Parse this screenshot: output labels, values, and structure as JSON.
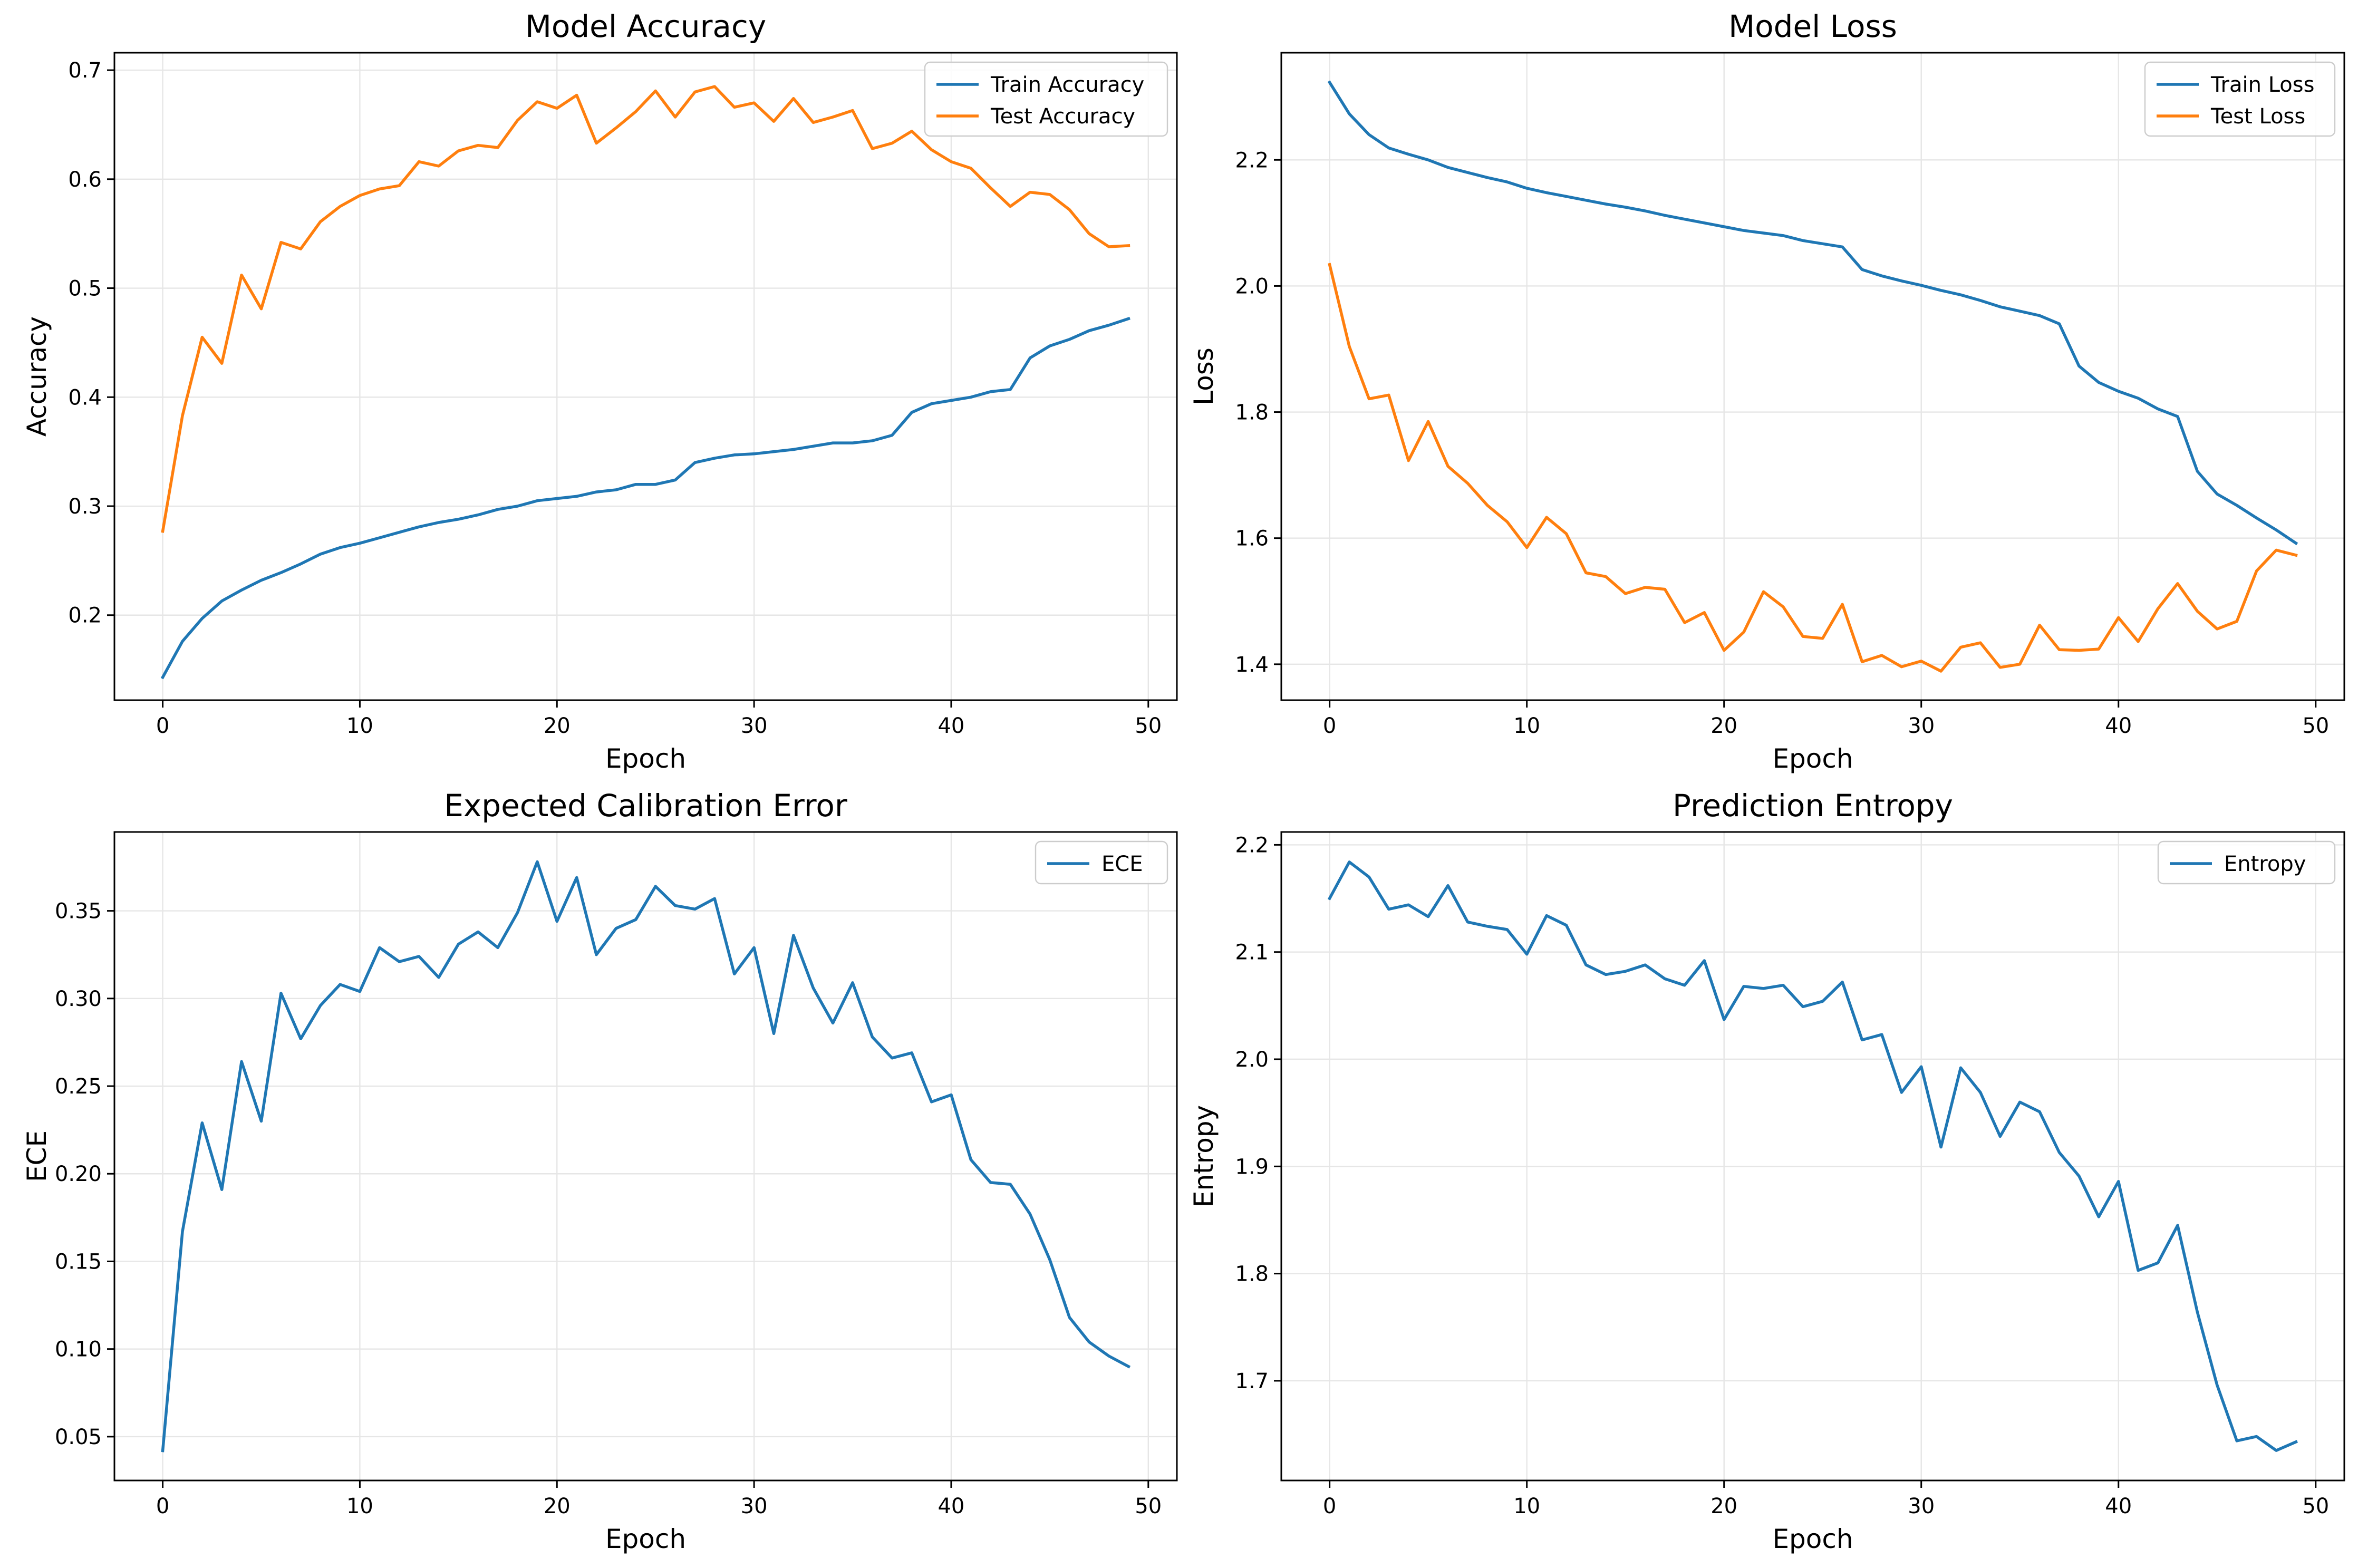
{
  "chart_data": [
    {
      "type": "line",
      "title": "Model Accuracy",
      "xlabel": "Epoch",
      "ylabel": "Accuracy",
      "xlim": [
        -2.45,
        51.45
      ],
      "ylim": [
        0.122,
        0.716
      ],
      "xticks": [
        0,
        10,
        20,
        30,
        40,
        50
      ],
      "yticks": [
        0.2,
        0.3,
        0.4,
        0.5,
        0.6,
        0.7
      ],
      "ytick_labels": [
        "0.2",
        "0.3",
        "0.4",
        "0.5",
        "0.6",
        "0.7"
      ],
      "grid": true,
      "legend_position": "top-right",
      "x": [
        0,
        1,
        2,
        3,
        4,
        5,
        6,
        7,
        8,
        9,
        10,
        11,
        12,
        13,
        14,
        15,
        16,
        17,
        18,
        19,
        20,
        21,
        22,
        23,
        24,
        25,
        26,
        27,
        28,
        29,
        30,
        31,
        32,
        33,
        34,
        35,
        36,
        37,
        38,
        39,
        40,
        41,
        42,
        43,
        44,
        45,
        46,
        47,
        48,
        49
      ],
      "series": [
        {
          "name": "Train Accuracy",
          "color": "#1f77b4",
          "values": [
            0.143,
            0.176,
            0.197,
            0.213,
            0.223,
            0.232,
            0.239,
            0.247,
            0.256,
            0.262,
            0.266,
            0.271,
            0.276,
            0.281,
            0.285,
            0.288,
            0.292,
            0.297,
            0.3,
            0.305,
            0.307,
            0.309,
            0.313,
            0.315,
            0.32,
            0.32,
            0.324,
            0.34,
            0.344,
            0.347,
            0.348,
            0.35,
            0.352,
            0.355,
            0.358,
            0.358,
            0.36,
            0.365,
            0.386,
            0.394,
            0.397,
            0.4,
            0.405,
            0.407,
            0.436,
            0.447,
            0.453,
            0.461,
            0.466,
            0.472
          ]
        },
        {
          "name": "Test Accuracy",
          "color": "#ff7f0e",
          "values": [
            0.277,
            0.383,
            0.455,
            0.431,
            0.512,
            0.481,
            0.542,
            0.536,
            0.561,
            0.575,
            0.585,
            0.591,
            0.594,
            0.616,
            0.612,
            0.626,
            0.631,
            0.629,
            0.654,
            0.671,
            0.665,
            0.677,
            0.633,
            0.647,
            0.662,
            0.681,
            0.657,
            0.68,
            0.685,
            0.666,
            0.67,
            0.653,
            0.674,
            0.652,
            0.657,
            0.663,
            0.628,
            0.633,
            0.644,
            0.627,
            0.616,
            0.61,
            0.592,
            0.575,
            0.588,
            0.586,
            0.572,
            0.55,
            0.538,
            0.539
          ]
        }
      ]
    },
    {
      "type": "line",
      "title": "Model Loss",
      "xlabel": "Epoch",
      "ylabel": "Loss",
      "xlim": [
        -2.45,
        51.45
      ],
      "ylim": [
        1.343,
        2.37
      ],
      "xticks": [
        0,
        10,
        20,
        30,
        40,
        50
      ],
      "yticks": [
        1.4,
        1.6,
        1.8,
        2.0,
        2.2
      ],
      "ytick_labels": [
        "1.4",
        "1.6",
        "1.8",
        "2.0",
        "2.2"
      ],
      "grid": true,
      "legend_position": "top-right",
      "x": [
        0,
        1,
        2,
        3,
        4,
        5,
        6,
        7,
        8,
        9,
        10,
        11,
        12,
        13,
        14,
        15,
        16,
        17,
        18,
        19,
        20,
        21,
        22,
        23,
        24,
        25,
        26,
        27,
        28,
        29,
        30,
        31,
        32,
        33,
        34,
        35,
        36,
        37,
        38,
        39,
        40,
        41,
        42,
        43,
        44,
        45,
        46,
        47,
        48,
        49
      ],
      "series": [
        {
          "name": "Train Loss",
          "color": "#1f77b4",
          "values": [
            2.323,
            2.273,
            2.24,
            2.219,
            2.209,
            2.2,
            2.188,
            2.18,
            2.172,
            2.165,
            2.155,
            2.148,
            2.142,
            2.136,
            2.13,
            2.125,
            2.119,
            2.112,
            2.106,
            2.1,
            2.094,
            2.088,
            2.084,
            2.08,
            2.072,
            2.067,
            2.062,
            2.026,
            2.016,
            2.008,
            2.001,
            1.993,
            1.986,
            1.977,
            1.967,
            1.96,
            1.953,
            1.94,
            1.873,
            1.847,
            1.833,
            1.822,
            1.805,
            1.793,
            1.706,
            1.67,
            1.652,
            1.632,
            1.613,
            1.592
          ]
        },
        {
          "name": "Test Loss",
          "color": "#ff7f0e",
          "values": [
            2.034,
            1.904,
            1.821,
            1.827,
            1.723,
            1.785,
            1.714,
            1.687,
            1.652,
            1.626,
            1.585,
            1.633,
            1.607,
            1.545,
            1.539,
            1.512,
            1.522,
            1.519,
            1.466,
            1.482,
            1.422,
            1.451,
            1.515,
            1.491,
            1.444,
            1.441,
            1.495,
            1.404,
            1.414,
            1.396,
            1.405,
            1.389,
            1.427,
            1.434,
            1.395,
            1.4,
            1.462,
            1.423,
            1.422,
            1.424,
            1.474,
            1.436,
            1.488,
            1.528,
            1.484,
            1.456,
            1.468,
            1.548,
            1.581,
            1.573
          ]
        }
      ]
    },
    {
      "type": "line",
      "title": "Expected Calibration Error",
      "xlabel": "Epoch",
      "ylabel": "ECE",
      "xlim": [
        -2.45,
        51.45
      ],
      "ylim": [
        0.025,
        0.395
      ],
      "xticks": [
        0,
        10,
        20,
        30,
        40,
        50
      ],
      "yticks": [
        0.05,
        0.1,
        0.15,
        0.2,
        0.25,
        0.3,
        0.35
      ],
      "ytick_labels": [
        "0.05",
        "0.10",
        "0.15",
        "0.20",
        "0.25",
        "0.30",
        "0.35"
      ],
      "grid": true,
      "legend_position": "top-right",
      "x": [
        0,
        1,
        2,
        3,
        4,
        5,
        6,
        7,
        8,
        9,
        10,
        11,
        12,
        13,
        14,
        15,
        16,
        17,
        18,
        19,
        20,
        21,
        22,
        23,
        24,
        25,
        26,
        27,
        28,
        29,
        30,
        31,
        32,
        33,
        34,
        35,
        36,
        37,
        38,
        39,
        40,
        41,
        42,
        43,
        44,
        45,
        46,
        47,
        48,
        49
      ],
      "series": [
        {
          "name": "ECE",
          "color": "#1f77b4",
          "values": [
            0.042,
            0.167,
            0.229,
            0.191,
            0.264,
            0.23,
            0.303,
            0.277,
            0.296,
            0.308,
            0.304,
            0.329,
            0.321,
            0.324,
            0.312,
            0.331,
            0.338,
            0.329,
            0.349,
            0.378,
            0.344,
            0.369,
            0.325,
            0.34,
            0.345,
            0.364,
            0.353,
            0.351,
            0.357,
            0.314,
            0.329,
            0.28,
            0.336,
            0.306,
            0.286,
            0.309,
            0.278,
            0.266,
            0.269,
            0.241,
            0.245,
            0.208,
            0.195,
            0.194,
            0.177,
            0.151,
            0.118,
            0.104,
            0.096,
            0.09
          ]
        }
      ]
    },
    {
      "type": "line",
      "title": "Prediction Entropy",
      "xlabel": "Epoch",
      "ylabel": "Entropy",
      "xlim": [
        -2.45,
        51.45
      ],
      "ylim": [
        1.607,
        2.212
      ],
      "xticks": [
        0,
        10,
        20,
        30,
        40,
        50
      ],
      "yticks": [
        1.7,
        1.8,
        1.9,
        2.0,
        2.1,
        2.2
      ],
      "ytick_labels": [
        "1.7",
        "1.8",
        "1.9",
        "2.0",
        "2.1",
        "2.2"
      ],
      "grid": true,
      "legend_position": "top-right",
      "x": [
        0,
        1,
        2,
        3,
        4,
        5,
        6,
        7,
        8,
        9,
        10,
        11,
        12,
        13,
        14,
        15,
        16,
        17,
        18,
        19,
        20,
        21,
        22,
        23,
        24,
        25,
        26,
        27,
        28,
        29,
        30,
        31,
        32,
        33,
        34,
        35,
        36,
        37,
        38,
        39,
        40,
        41,
        42,
        43,
        44,
        45,
        46,
        47,
        48,
        49
      ],
      "series": [
        {
          "name": "Entropy",
          "color": "#1f77b4",
          "values": [
            2.15,
            2.184,
            2.17,
            2.14,
            2.144,
            2.133,
            2.162,
            2.128,
            2.124,
            2.121,
            2.098,
            2.134,
            2.125,
            2.088,
            2.079,
            2.082,
            2.088,
            2.075,
            2.069,
            2.092,
            2.037,
            2.068,
            2.066,
            2.069,
            2.049,
            2.054,
            2.072,
            2.018,
            2.023,
            1.969,
            1.993,
            1.918,
            1.992,
            1.969,
            1.928,
            1.96,
            1.951,
            1.913,
            1.891,
            1.853,
            1.886,
            1.803,
            1.81,
            1.845,
            1.764,
            1.696,
            1.644,
            1.648,
            1.635,
            1.643
          ]
        }
      ]
    }
  ]
}
